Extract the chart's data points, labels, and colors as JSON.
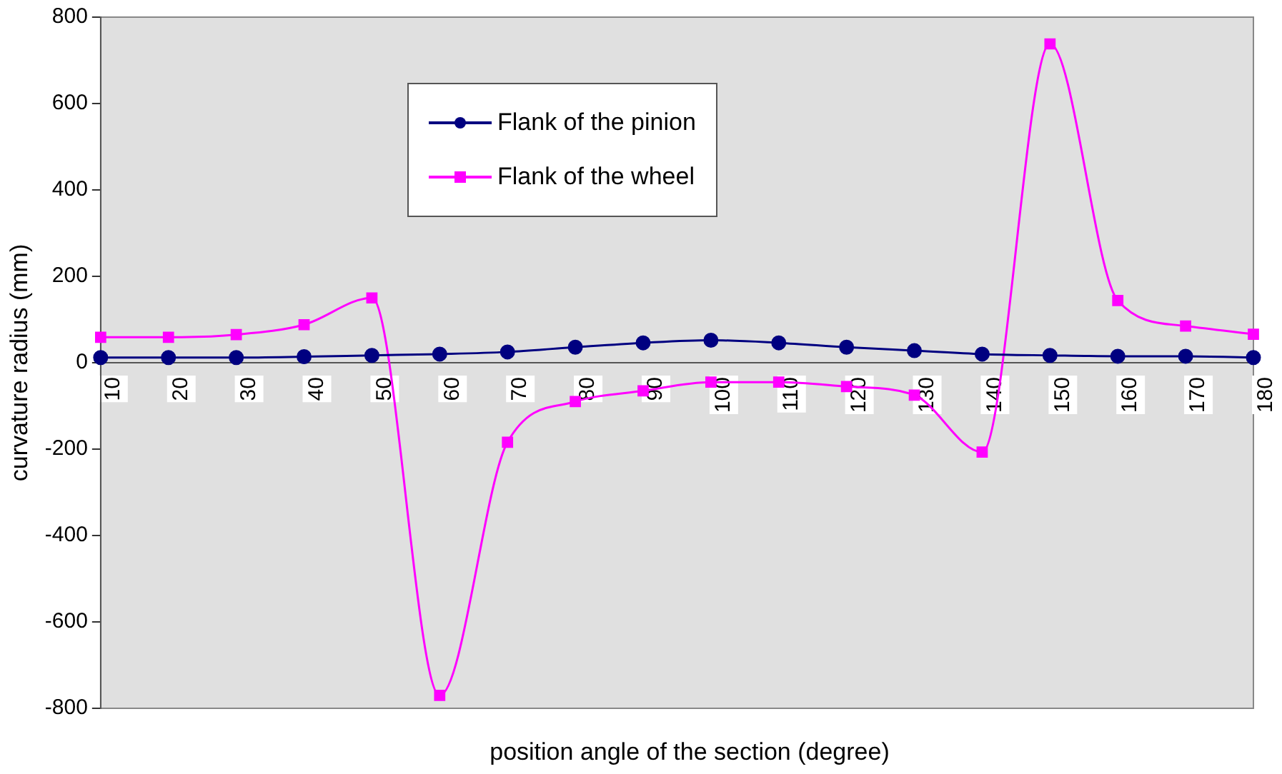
{
  "chart_data": {
    "type": "line",
    "xlabel": "position angle of the section (degree)",
    "ylabel": "curvature radius (mm)",
    "categories": [
      "10",
      "20",
      "30",
      "40",
      "50",
      "60",
      "70",
      "80",
      "90",
      "100",
      "110",
      "120",
      "130",
      "140",
      "150",
      "160",
      "170",
      "180"
    ],
    "ylim": [
      -800,
      800
    ],
    "yticks": [
      -800,
      -600,
      -400,
      -200,
      0,
      200,
      400,
      600,
      800
    ],
    "grid": false,
    "legend": "top",
    "series": [
      {
        "name": "Flank of the pinion",
        "color": "#000080",
        "marker": "circle",
        "values": [
          12,
          12,
          12,
          14,
          17,
          20,
          25,
          36,
          46,
          52,
          46,
          36,
          28,
          20,
          17,
          15,
          15,
          12
        ]
      },
      {
        "name": "Flank of the wheel",
        "color": "#ff00ff",
        "marker": "square",
        "values": [
          59,
          59,
          65,
          88,
          150,
          -770,
          -184,
          -90,
          -65,
          -45,
          -45,
          -55,
          -75,
          -207,
          738,
          144,
          85,
          66
        ]
      }
    ]
  }
}
